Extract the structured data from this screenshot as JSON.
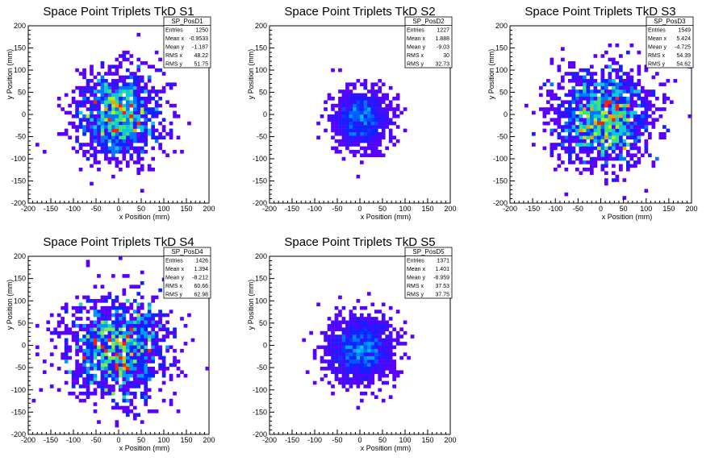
{
  "colors": {
    "low": "#5a00ff",
    "mid": "#00c0ff",
    "high": "#b4ff3c",
    "peak": "#ff1e00"
  },
  "chart_data": [
    {
      "type": "heatmap",
      "title": "Space Point Triplets TkD S1",
      "xlabel": "x Position (mm)",
      "ylabel": "y Position (mm)",
      "xlim": [
        -200,
        200
      ],
      "ylim": [
        -200,
        200
      ],
      "xticks": [
        -200,
        -150,
        -100,
        -50,
        0,
        50,
        100,
        150,
        200
      ],
      "yticks": [
        -200,
        -150,
        -100,
        -50,
        0,
        50,
        100,
        150,
        200
      ],
      "stats": {
        "name": "SP_PosD1",
        "rows": [
          [
            "Entries",
            "1250"
          ],
          [
            "Mean x",
            "-0.9533"
          ],
          [
            "Mean y",
            "-1.187"
          ],
          [
            "RMS x",
            "48.22"
          ],
          [
            "RMS y",
            "51.75"
          ]
        ]
      },
      "distribution": {
        "center": [
          -0.9533,
          -1.187
        ],
        "rms": [
          48.22,
          51.75
        ],
        "entries": 1250,
        "peak_bin_entries": 8
      }
    },
    {
      "type": "heatmap",
      "title": "Space Point Triplets TkD S2",
      "xlabel": "x Position (mm)",
      "ylabel": "y Position (mm)",
      "xlim": [
        -200,
        200
      ],
      "ylim": [
        -200,
        200
      ],
      "xticks": [
        -200,
        -150,
        -100,
        -50,
        0,
        50,
        100,
        150,
        200
      ],
      "yticks": [
        -200,
        -150,
        -100,
        -50,
        0,
        50,
        100,
        150,
        200
      ],
      "stats": {
        "name": "SP_PosD2",
        "rows": [
          [
            "Entries",
            "1227"
          ],
          [
            "Mean x",
            "1.888"
          ],
          [
            "Mean y",
            "-9.03"
          ],
          [
            "RMS x",
            "30"
          ],
          [
            "RMS y",
            "32.73"
          ]
        ]
      },
      "distribution": {
        "center": [
          1.888,
          -9.03
        ],
        "rms": [
          30,
          32.73
        ],
        "entries": 1227,
        "peak_bin_entries": 40
      }
    },
    {
      "type": "heatmap",
      "title": "Space Point Triplets TkD S3",
      "xlabel": "x Position (mm)",
      "ylabel": "y Position (mm)",
      "xlim": [
        -200,
        200
      ],
      "ylim": [
        -200,
        200
      ],
      "xticks": [
        -200,
        -150,
        -100,
        -50,
        0,
        50,
        100,
        150,
        200
      ],
      "yticks": [
        -200,
        -150,
        -100,
        -50,
        0,
        50,
        100,
        150,
        200
      ],
      "stats": {
        "name": "SP_PosD3",
        "rows": [
          [
            "Entries",
            "1549"
          ],
          [
            "Mean x",
            "5.424"
          ],
          [
            "Mean y",
            "-4.725"
          ],
          [
            "RMS x",
            "54.39"
          ],
          [
            "RMS y",
            "54.62"
          ]
        ]
      },
      "distribution": {
        "center": [
          5.424,
          -4.725
        ],
        "rms": [
          54.39,
          54.62
        ],
        "entries": 1549,
        "peak_bin_entries": 8
      }
    },
    {
      "type": "heatmap",
      "title": "Space Point Triplets TkD S4",
      "xlabel": "x Position (mm)",
      "ylabel": "y Position (mm)",
      "xlim": [
        -200,
        200
      ],
      "ylim": [
        -200,
        200
      ],
      "xticks": [
        -200,
        -150,
        -100,
        -50,
        0,
        50,
        100,
        150,
        200
      ],
      "yticks": [
        -200,
        -150,
        -100,
        -50,
        0,
        50,
        100,
        150,
        200
      ],
      "stats": {
        "name": "SP_PosD4",
        "rows": [
          [
            "Entries",
            "1426"
          ],
          [
            "Mean x",
            "1.394"
          ],
          [
            "Mean y",
            "-8.212"
          ],
          [
            "RMS x",
            "60.66"
          ],
          [
            "RMS y",
            "62.98"
          ]
        ]
      },
      "distribution": {
        "center": [
          1.394,
          -8.212
        ],
        "rms": [
          60.66,
          62.98
        ],
        "entries": 1426,
        "peak_bin_entries": 7
      }
    },
    {
      "type": "heatmap",
      "title": "Space Point Triplets TkD S5",
      "xlabel": "x Position (mm)",
      "ylabel": "y Position (mm)",
      "xlim": [
        -200,
        200
      ],
      "ylim": [
        -200,
        200
      ],
      "xticks": [
        -200,
        -150,
        -100,
        -50,
        0,
        50,
        100,
        150,
        200
      ],
      "yticks": [
        -200,
        -150,
        -100,
        -50,
        0,
        50,
        100,
        150,
        200
      ],
      "stats": {
        "name": "SP_PosD5",
        "rows": [
          [
            "Entries",
            "1371"
          ],
          [
            "Mean x",
            "1.401"
          ],
          [
            "Mean y",
            "-8.959"
          ],
          [
            "RMS x",
            "37.53"
          ],
          [
            "RMS y",
            "37.75"
          ]
        ]
      },
      "distribution": {
        "center": [
          1.401,
          -8.959
        ],
        "rms": [
          37.53,
          37.75
        ],
        "entries": 1371,
        "peak_bin_entries": 30
      }
    }
  ]
}
